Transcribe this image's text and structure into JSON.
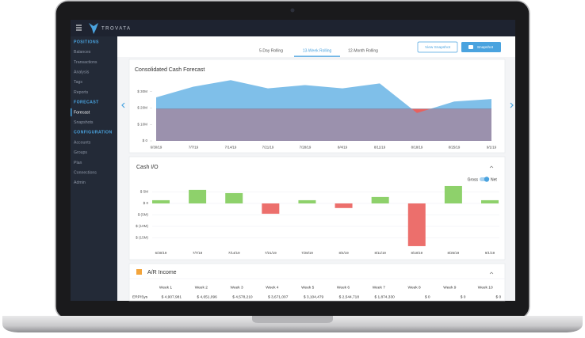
{
  "app": {
    "brand": "TROVATA"
  },
  "sidebar": {
    "sections": [
      {
        "title": "POSITIONS",
        "items": [
          "Balances",
          "Transactions",
          "Analysis",
          "Tags",
          "Reports"
        ]
      },
      {
        "title": "FORECAST",
        "items": [
          "Forecast",
          "Snapshots"
        ]
      },
      {
        "title": "CONFIGURATION",
        "items": [
          "Accounts",
          "Groups",
          "Plan",
          "Connections",
          "Admin"
        ]
      }
    ]
  },
  "tabs": [
    "5-Day Rolling",
    "13-Week Rolling",
    "12-Month Rolling"
  ],
  "buttons": [
    "View Snapshot",
    "Snapshot"
  ],
  "forecast": {
    "type": "area",
    "title": "Consolidated Cash Forecast",
    "categories": [
      "6/30/19",
      "7/7/19",
      "7/14/19",
      "7/21/19",
      "7/28/19",
      "8/4/19",
      "8/11/19",
      "8/18/19",
      "8/25/19",
      "9/1/19"
    ],
    "values": [
      26.5,
      33,
      37,
      32,
      34,
      32,
      35,
      17,
      24,
      25.5
    ],
    "threshold": 19.5,
    "color": "#7fbfe9",
    "threshold_color": "#9b91ad",
    "below_color": "#e8615e",
    "ylim": [
      0,
      40
    ],
    "yticks": [
      {
        "value": 0,
        "label": "$ 0"
      },
      {
        "value": 10,
        "label": "$ 10M"
      },
      {
        "value": 20,
        "label": "$ 20M"
      },
      {
        "value": 30,
        "label": "$ 30M"
      }
    ]
  },
  "cash_io": {
    "type": "bar",
    "title": "Cash I/O",
    "toggle": [
      "Gross",
      "Net"
    ],
    "categories": [
      "6/30/19",
      "7/7/19",
      "7/14/19",
      "7/21/19",
      "7/28/19",
      "8/4/19",
      "8/11/19",
      "8/18/19",
      "8/25/19",
      "9/1/19"
    ],
    "values": [
      1.4,
      5.9,
      4.5,
      -4.5,
      1.4,
      -2,
      2.8,
      -18.6,
      7.6,
      1.4
    ],
    "positive_color": "#8ed16b",
    "negative_color": "#ec6f6c",
    "ylim": [
      -20,
      10
    ],
    "yticks": [
      {
        "value": -15,
        "label": "$ (15M)"
      },
      {
        "value": -10,
        "label": "$ (10M)"
      },
      {
        "value": -5,
        "label": "$ (5M)"
      },
      {
        "value": 0,
        "label": "$ 0"
      },
      {
        "value": 5,
        "label": "$ 5M"
      }
    ],
    "grid": true
  },
  "ar_income": {
    "title": "A/R Income",
    "columns": [
      "Week 1",
      "Week 2",
      "Week 3",
      "Week 4",
      "Week 5",
      "Week 6",
      "Week 7",
      "Week 8",
      "Week 9",
      "Week 10"
    ],
    "rows": [
      [
        "ERP/Sys",
        "$ 4,907,981",
        "$ 4,651,096",
        "$ 4,578,210",
        "$ 3,671,007",
        "$ 3,104,479",
        "$ 2,544,718",
        "$ 1,874,330",
        "$ 0",
        "$ 0",
        "$ 0"
      ]
    ]
  }
}
